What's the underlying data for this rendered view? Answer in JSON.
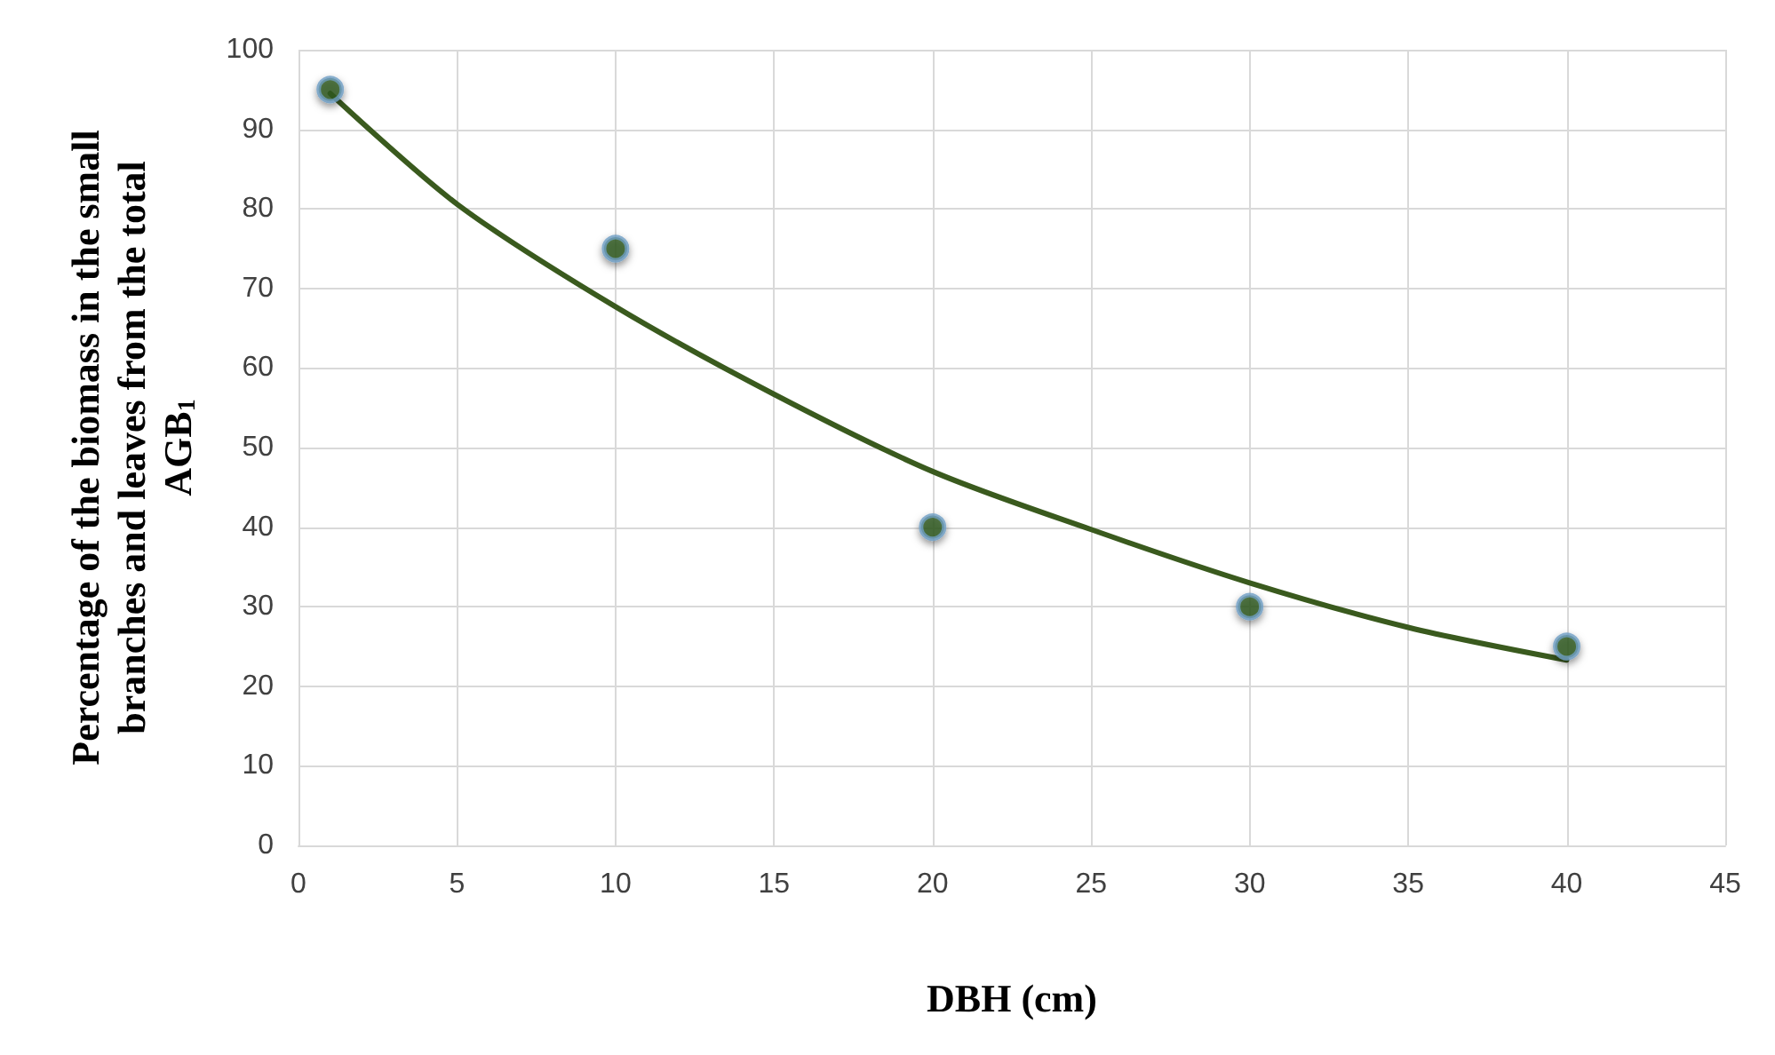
{
  "chart_data": {
    "type": "scatter",
    "xlabel": "DBH (cm)",
    "ylabel": "Percentage of the biomass in the small branches and leaves from the total AGB$_{1}$",
    "xlim": [
      0,
      45
    ],
    "xticks": [
      0,
      5,
      10,
      15,
      20,
      25,
      30,
      35,
      40,
      45
    ],
    "ylim": [
      0,
      100
    ],
    "yticks": [
      0,
      10,
      20,
      30,
      40,
      50,
      60,
      70,
      80,
      90,
      100
    ],
    "grid": true,
    "marker": "circle",
    "series": [
      {
        "color": "#2f5a1e",
        "x": [
          1,
          10,
          20,
          30,
          40
        ],
        "values": [
          95,
          75,
          40,
          30,
          25
        ]
      },
      {
        "type": "line",
        "color": "#3a5a1e",
        "marker": "none",
        "line_style": "solid",
        "x": [
          1,
          5,
          10,
          15,
          20,
          25,
          30,
          35,
          40
        ],
        "values": [
          94.5,
          80.6,
          67.7,
          56.7,
          47,
          39.7,
          33,
          27.4,
          23.3
        ]
      }
    ]
  }
}
